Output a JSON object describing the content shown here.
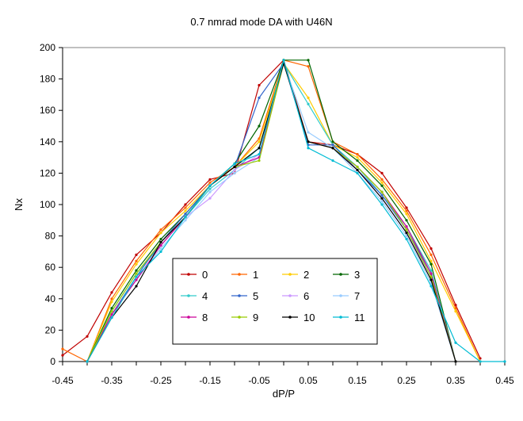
{
  "chart_data": {
    "type": "line",
    "title": "0.7 nmrad mode DA with U46N",
    "xlabel": "dP/P",
    "ylabel": "Nx",
    "xlim": [
      -0.45,
      0.45
    ],
    "ylim": [
      0,
      200
    ],
    "x_ticks": [
      "-0.45",
      "-0.35",
      "-0.25",
      "-0.15",
      "-0.05",
      "0.05",
      "0.15",
      "0.25",
      "0.35",
      "0.45"
    ],
    "y_ticks": [
      "0",
      "20",
      "40",
      "60",
      "80",
      "100",
      "120",
      "140",
      "160",
      "180",
      "200"
    ],
    "grid": false,
    "legend_position": "bottom-center",
    "x": [
      -0.45,
      -0.4,
      -0.35,
      -0.3,
      -0.25,
      -0.2,
      -0.15,
      -0.1,
      -0.05,
      0.0,
      0.05,
      0.1,
      0.15,
      0.2,
      0.25,
      0.3,
      0.35,
      0.4,
      0.45
    ],
    "series": [
      {
        "name": "0",
        "color": "#c00000",
        "values": [
          4,
          16,
          44,
          68,
          82,
          100,
          116,
          120,
          176,
          192,
          140,
          138,
          132,
          120,
          98,
          72,
          36,
          2,
          null
        ]
      },
      {
        "name": "1",
        "color": "#ff6600",
        "values": [
          8,
          0,
          40,
          64,
          84,
          98,
          114,
          124,
          142,
          192,
          188,
          140,
          132,
          116,
          96,
          68,
          34,
          0,
          null
        ]
      },
      {
        "name": "2",
        "color": "#ffcc00",
        "values": [
          null,
          0,
          38,
          62,
          82,
          96,
          112,
          124,
          140,
          190,
          168,
          138,
          130,
          114,
          94,
          64,
          32,
          0,
          null
        ]
      },
      {
        "name": "3",
        "color": "#006600",
        "values": [
          null,
          0,
          34,
          58,
          78,
          94,
          112,
          126,
          150,
          192,
          192,
          140,
          128,
          112,
          90,
          62,
          0,
          null,
          null
        ]
      },
      {
        "name": "4",
        "color": "#33cccc",
        "values": [
          null,
          0,
          32,
          56,
          74,
          92,
          110,
          122,
          136,
          190,
          164,
          138,
          124,
          106,
          86,
          58,
          0,
          null,
          null
        ]
      },
      {
        "name": "5",
        "color": "#3366cc",
        "values": [
          null,
          0,
          30,
          54,
          76,
          94,
          112,
          124,
          168,
          190,
          138,
          138,
          122,
          106,
          84,
          56,
          0,
          null,
          null
        ]
      },
      {
        "name": "6",
        "color": "#cc99ff",
        "values": [
          null,
          0,
          30,
          52,
          74,
          92,
          104,
          122,
          132,
          190,
          140,
          136,
          122,
          104,
          82,
          54,
          0,
          null,
          null
        ]
      },
      {
        "name": "7",
        "color": "#99ccff",
        "values": [
          null,
          0,
          30,
          52,
          72,
          90,
          108,
          120,
          130,
          190,
          146,
          136,
          120,
          102,
          80,
          50,
          0,
          null,
          null
        ]
      },
      {
        "name": "8",
        "color": "#cc0099",
        "values": [
          null,
          0,
          30,
          52,
          74,
          92,
          112,
          124,
          130,
          190,
          140,
          136,
          124,
          108,
          86,
          56,
          0,
          null,
          null
        ]
      },
      {
        "name": "9",
        "color": "#99cc00",
        "values": [
          null,
          0,
          32,
          56,
          76,
          92,
          112,
          124,
          128,
          190,
          140,
          136,
          124,
          108,
          84,
          54,
          0,
          null,
          null
        ]
      },
      {
        "name": "10",
        "color": "#000000",
        "values": [
          null,
          0,
          28,
          48,
          76,
          92,
          112,
          124,
          136,
          190,
          140,
          136,
          122,
          104,
          82,
          52,
          0,
          null,
          null
        ]
      },
      {
        "name": "11",
        "color": "#00bcd4",
        "values": [
          null,
          0,
          28,
          54,
          70,
          92,
          112,
          126,
          132,
          192,
          136,
          128,
          120,
          100,
          78,
          48,
          12,
          0,
          0
        ]
      }
    ]
  }
}
